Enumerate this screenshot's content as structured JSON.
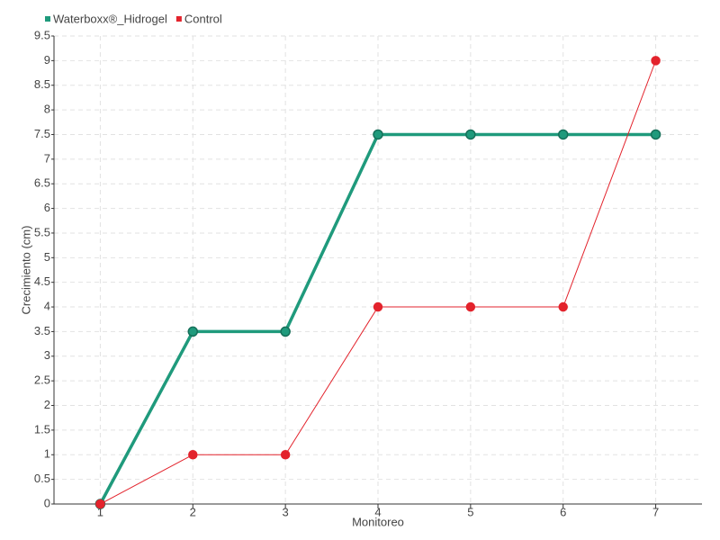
{
  "chart_data": {
    "type": "line",
    "y_label": "Crecimiento (cm)",
    "x_label": "Monitoreo",
    "categories": [
      "1",
      "2",
      "3",
      "4",
      "5",
      "6",
      "7"
    ],
    "series": [
      {
        "name": "Waterboxx®_Hidrogel",
        "color": "#1f9a7c",
        "values": [
          0,
          3.5,
          3.5,
          7.5,
          7.5,
          7.5,
          7.5
        ]
      },
      {
        "name": "Control",
        "color": "#e3232c",
        "values": [
          0,
          1,
          1,
          4,
          4,
          4,
          9
        ]
      }
    ],
    "ylim": [
      0,
      9.5
    ],
    "yticks": [
      0,
      0.5,
      1,
      1.5,
      2,
      2.5,
      3,
      3.5,
      4,
      4.5,
      5,
      5.5,
      6,
      6.5,
      7,
      7.5,
      8,
      8.5,
      9,
      9.5
    ],
    "grid": true,
    "legend": "top-left"
  }
}
